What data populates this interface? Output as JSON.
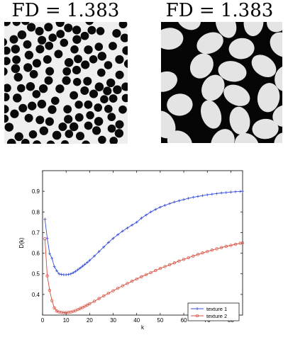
{
  "panels": [
    {
      "fd_label": "FD = 1.383"
    },
    {
      "fd_label": "FD = 1.383"
    }
  ],
  "chart_data": {
    "type": "line",
    "title": "",
    "xlabel": "k",
    "ylabel": "D(k)",
    "xlim": [
      0,
      85
    ],
    "ylim": [
      0.3,
      1.0
    ],
    "xticks": [
      0,
      10,
      20,
      30,
      40,
      50,
      60,
      70,
      80
    ],
    "yticks": [
      0.4,
      0.5,
      0.6,
      0.7,
      0.8,
      0.9
    ],
    "grid": false,
    "legend_position": "bottom-right",
    "series": [
      {
        "name": "texture 1",
        "color": "#3a4fd8",
        "marker": "plus",
        "x": [
          1,
          2,
          3,
          4,
          5,
          6,
          7,
          8,
          9,
          10,
          11,
          12,
          13,
          14,
          15,
          16,
          17,
          18,
          19,
          20,
          22,
          24,
          26,
          28,
          30,
          32,
          34,
          36,
          38,
          40,
          42,
          44,
          46,
          48,
          50,
          52,
          54,
          56,
          58,
          60,
          62,
          64,
          66,
          68,
          70,
          72,
          74,
          76,
          78,
          80,
          82,
          84,
          85
        ],
        "values": [
          0.765,
          0.672,
          0.598,
          0.575,
          0.535,
          0.515,
          0.5,
          0.497,
          0.496,
          0.496,
          0.497,
          0.5,
          0.505,
          0.512,
          0.52,
          0.528,
          0.537,
          0.546,
          0.555,
          0.565,
          0.586,
          0.608,
          0.63,
          0.652,
          0.672,
          0.69,
          0.707,
          0.722,
          0.736,
          0.75,
          0.77,
          0.785,
          0.8,
          0.812,
          0.823,
          0.832,
          0.84,
          0.848,
          0.854,
          0.86,
          0.866,
          0.871,
          0.875,
          0.879,
          0.883,
          0.886,
          0.889,
          0.892,
          0.894,
          0.896,
          0.898,
          0.899,
          0.9
        ]
      },
      {
        "name": "texture 2",
        "color": "#d84a3a",
        "marker": "circle",
        "x": [
          1,
          2,
          3,
          4,
          5,
          6,
          7,
          8,
          9,
          10,
          11,
          12,
          13,
          14,
          15,
          16,
          17,
          18,
          19,
          20,
          22,
          24,
          26,
          28,
          30,
          32,
          34,
          36,
          38,
          40,
          42,
          44,
          46,
          48,
          50,
          52,
          54,
          56,
          58,
          60,
          62,
          64,
          66,
          68,
          70,
          72,
          74,
          76,
          78,
          80,
          82,
          84,
          85
        ],
        "values": [
          0.67,
          0.49,
          0.42,
          0.37,
          0.335,
          0.32,
          0.315,
          0.313,
          0.312,
          0.312,
          0.313,
          0.315,
          0.318,
          0.322,
          0.327,
          0.332,
          0.337,
          0.343,
          0.349,
          0.355,
          0.367,
          0.38,
          0.393,
          0.406,
          0.418,
          0.43,
          0.442,
          0.453,
          0.464,
          0.475,
          0.486,
          0.496,
          0.506,
          0.516,
          0.526,
          0.535,
          0.544,
          0.553,
          0.562,
          0.57,
          0.578,
          0.586,
          0.594,
          0.601,
          0.608,
          0.615,
          0.621,
          0.627,
          0.633,
          0.638,
          0.643,
          0.648,
          0.65
        ]
      }
    ]
  }
}
